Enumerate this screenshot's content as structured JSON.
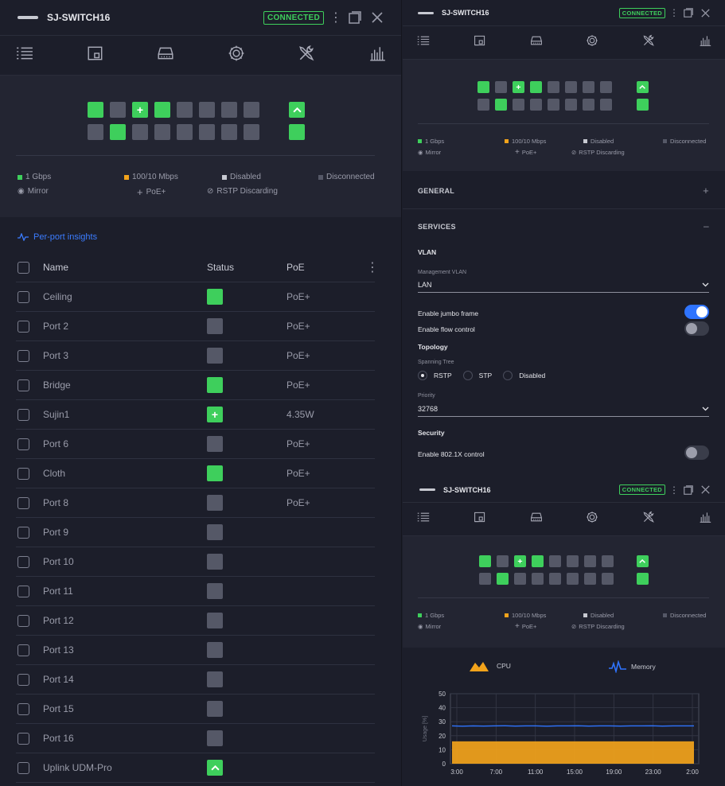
{
  "device": {
    "name": "SJ-SWITCH16",
    "status": "CONNECTED"
  },
  "colors": {
    "green": "#3ecf5c",
    "gray": "#555867",
    "bg": "#1c1e2a",
    "panel": "#232532",
    "blue": "#2f74ff",
    "orange": "#f2a31b",
    "link": "#3b7cff"
  },
  "tabs": [
    {
      "id": "list",
      "icon": "list-icon"
    },
    {
      "id": "device",
      "icon": "device-icon"
    },
    {
      "id": "ports",
      "icon": "ports-icon"
    },
    {
      "id": "settings",
      "icon": "gear-icon"
    },
    {
      "id": "tools",
      "icon": "tools-icon"
    },
    {
      "id": "stats",
      "icon": "stats-icon"
    }
  ],
  "ports": {
    "top": [
      "green",
      "gray",
      "plus",
      "green",
      "gray",
      "gray",
      "gray",
      "gray"
    ],
    "bottom": [
      "gray",
      "green",
      "gray",
      "gray",
      "gray",
      "gray",
      "gray",
      "gray"
    ],
    "sfp": [
      "uplink",
      "green"
    ]
  },
  "legend": {
    "gbps": "1 Gbps",
    "fast": "100/10 Mbps",
    "disabled": "Disabled",
    "disconnected": "Disconnected",
    "mirror": "Mirror",
    "poe": "PoE+",
    "rstp": "RSTP Discarding"
  },
  "insights": {
    "label": "Per-port insights"
  },
  "table": {
    "headers": {
      "name": "Name",
      "status": "Status",
      "poe": "PoE"
    },
    "rows": [
      {
        "name": "Ceiling",
        "status": "green",
        "poe": "PoE+"
      },
      {
        "name": "Port 2",
        "status": "gray",
        "poe": "PoE+"
      },
      {
        "name": "Port 3",
        "status": "gray",
        "poe": "PoE+"
      },
      {
        "name": "Bridge",
        "status": "green",
        "poe": "PoE+"
      },
      {
        "name": "Sujin1",
        "status": "plus",
        "poe": "4.35W"
      },
      {
        "name": "Port 6",
        "status": "gray",
        "poe": "PoE+"
      },
      {
        "name": "Cloth",
        "status": "green",
        "poe": "PoE+"
      },
      {
        "name": "Port 8",
        "status": "gray",
        "poe": "PoE+"
      },
      {
        "name": "Port 9",
        "status": "gray",
        "poe": ""
      },
      {
        "name": "Port 10",
        "status": "gray",
        "poe": ""
      },
      {
        "name": "Port 11",
        "status": "gray",
        "poe": ""
      },
      {
        "name": "Port 12",
        "status": "gray",
        "poe": ""
      },
      {
        "name": "Port 13",
        "status": "gray",
        "poe": ""
      },
      {
        "name": "Port 14",
        "status": "gray",
        "poe": ""
      },
      {
        "name": "Port 15",
        "status": "gray",
        "poe": ""
      },
      {
        "name": "Port 16",
        "status": "gray",
        "poe": ""
      },
      {
        "name": "Uplink UDM-Pro",
        "status": "uplink",
        "poe": ""
      }
    ]
  },
  "settings": {
    "general": "GENERAL",
    "services": "SERVICES",
    "vlan": "VLAN",
    "mgmt_vlan_label": "Management VLAN",
    "mgmt_vlan_value": "LAN",
    "jumbo": "Enable jumbo frame",
    "jumbo_on": true,
    "flow": "Enable flow control",
    "flow_on": false,
    "topology": "Topology",
    "spanning_label": "Spanning Tree",
    "stp_options": [
      "RSTP",
      "STP",
      "Disabled"
    ],
    "stp_selected": "RSTP",
    "priority_label": "Priority",
    "priority_value": "32768",
    "security": "Security",
    "dot1x": "Enable 802.1X control",
    "dot1x_on": false
  },
  "chart_data": {
    "type": "area",
    "legend": [
      "CPU",
      "Memory"
    ],
    "ylabel": "Usage [%]",
    "ylim": [
      0,
      50
    ],
    "yticks": [
      0,
      10,
      20,
      30,
      40,
      50
    ],
    "xticks": [
      "3:00",
      "7:00",
      "11:00",
      "15:00",
      "19:00",
      "23:00",
      "2:00"
    ],
    "series": [
      {
        "name": "CPU",
        "values": [
          16,
          16,
          16,
          16,
          16,
          16,
          16,
          16,
          16,
          16,
          16,
          16,
          16,
          16,
          16,
          16,
          16,
          16,
          16,
          16,
          16,
          16,
          16,
          16
        ],
        "color": "#f2a31b"
      },
      {
        "name": "Memory",
        "values": [
          27,
          26.8,
          27,
          26.9,
          27,
          27.1,
          26.9,
          27,
          27,
          26.8,
          27,
          27,
          27.1,
          26.9,
          27,
          27,
          26.9,
          27,
          27,
          27.1,
          26.9,
          27,
          27,
          27
        ],
        "color": "#2f74ff"
      }
    ]
  }
}
